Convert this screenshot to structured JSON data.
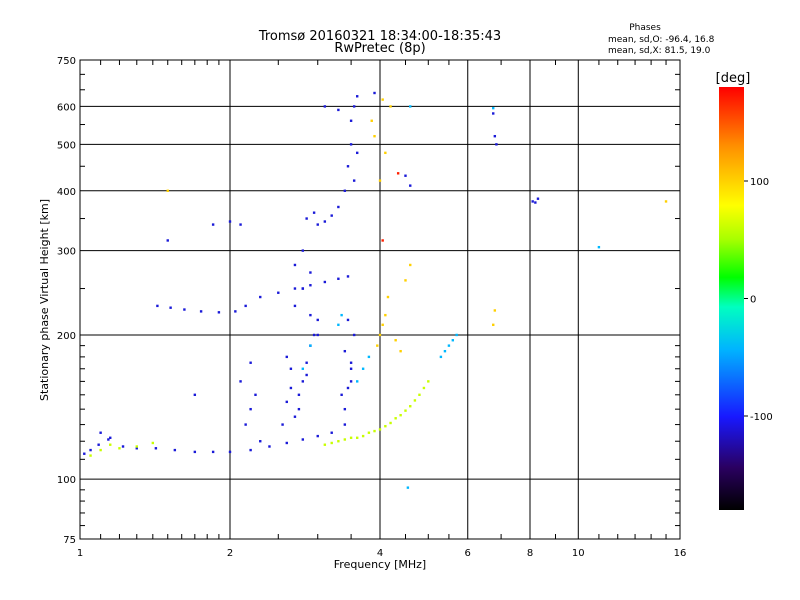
{
  "chart_data": {
    "type": "scatter",
    "title": "Tromsø 20160321 18:34:00-18:35:43",
    "subtitle": "RwPretec (8p)",
    "xlabel": "Frequency [MHz]",
    "ylabel": "Stationary phase Virtual Height [km]",
    "xscale": "log",
    "yscale": "log",
    "xlim": [
      1,
      16
    ],
    "ylim": [
      75,
      750
    ],
    "xticks": [
      "1",
      "2",
      "4",
      "6",
      "8",
      "10",
      "16"
    ],
    "yticks": [
      "75",
      "100",
      "200",
      "300",
      "400",
      "500",
      "600",
      "750"
    ],
    "grid": true,
    "stats": {
      "heading": "Phases",
      "line1": "mean, sd,O: -96.4, 16.8",
      "line2": "mean, sd,X:  81.5, 19.0"
    },
    "colorbar": {
      "label": "[deg]",
      "range": [
        -180,
        180
      ],
      "ticks": [
        "100",
        "0",
        "-100"
      ],
      "colors": [
        "#000000",
        "#2a0060",
        "#1818ff",
        "#00b4ff",
        "#00ffc0",
        "#00ff00",
        "#a8ff00",
        "#ffff00",
        "#ff9000",
        "#ff0000"
      ]
    },
    "series": [
      {
        "color": "#1a1ad8",
        "x": [
          1.02,
          1.05,
          1.09,
          1.14,
          1.22,
          1.3,
          1.42,
          1.55,
          1.7,
          1.85,
          2.0,
          2.2,
          2.4,
          2.6,
          2.8,
          3.0,
          3.2,
          1.43,
          1.52,
          1.62,
          1.75,
          1.9,
          2.05,
          2.15,
          2.3,
          2.5,
          2.7,
          2.9,
          3.1,
          3.3,
          3.45,
          2.7,
          2.75,
          2.8,
          2.85,
          2.9,
          2.6,
          2.65,
          2.95,
          3.0,
          2.55,
          2.7,
          2.8,
          2.9,
          2.6,
          2.75,
          2.85,
          2.7,
          2.8,
          2.9,
          2.65,
          3.4,
          3.45,
          3.5,
          3.4,
          3.55,
          3.45,
          3.5,
          3.35,
          3.5,
          3.4,
          2.15,
          2.2,
          2.25,
          2.1,
          2.2,
          2.3,
          3.0,
          3.1,
          3.2,
          3.3,
          3.4,
          3.45,
          3.5,
          3.5,
          3.55,
          3.6,
          3.55,
          3.6,
          2.85,
          2.95,
          3.1,
          3.3,
          1.85,
          2.0,
          2.1,
          1.7,
          2.8,
          3.0,
          6.75,
          6.8,
          6.85,
          8.1,
          8.3,
          8.2,
          4.5,
          4.6,
          3.9,
          1.5,
          1.1,
          1.15
        ],
        "y": [
          113,
          115,
          118,
          121,
          117,
          116,
          116,
          115,
          114,
          114,
          114,
          115,
          117,
          119,
          121,
          123,
          125,
          230,
          228,
          226,
          224,
          223,
          224,
          230,
          240,
          245,
          250,
          254,
          258,
          262,
          265,
          135,
          150,
          160,
          175,
          190,
          145,
          170,
          200,
          215,
          130,
          230,
          250,
          270,
          180,
          140,
          165,
          280,
          300,
          220,
          155,
          140,
          155,
          170,
          185,
          200,
          215,
          160,
          150,
          175,
          130,
          130,
          140,
          150,
          160,
          175,
          120,
          340,
          345,
          355,
          370,
          400,
          450,
          500,
          560,
          600,
          630,
          420,
          480,
          350,
          360,
          600,
          590,
          340,
          345,
          340,
          150,
          250,
          200,
          580,
          520,
          500,
          380,
          385,
          378,
          430,
          410,
          640,
          315,
          125,
          122
        ]
      },
      {
        "color": "#c8ff00",
        "x": [
          1.05,
          1.1,
          1.15,
          1.2,
          1.3,
          1.4,
          3.1,
          3.2,
          3.3,
          3.4,
          3.5,
          3.6,
          3.7,
          3.8,
          3.9,
          4.0,
          4.1,
          4.2,
          4.3,
          4.4,
          4.5,
          4.6,
          4.7,
          4.8,
          4.9,
          5.0
        ],
        "y": [
          112,
          115,
          118,
          116,
          117,
          119,
          118,
          119,
          120,
          121,
          122,
          122,
          123,
          125,
          126,
          127,
          129,
          131,
          134,
          136,
          139,
          142,
          146,
          150,
          155,
          160
        ]
      },
      {
        "color": "#ffd000",
        "x": [
          3.95,
          4.0,
          4.05,
          4.1,
          4.15,
          4.0,
          4.1,
          3.9,
          3.85,
          4.2,
          4.05,
          4.3,
          4.4,
          4.5,
          4.6,
          1.5,
          15.0,
          6.75,
          6.8
        ],
        "y": [
          190,
          200,
          210,
          220,
          240,
          420,
          480,
          520,
          560,
          600,
          620,
          195,
          185,
          260,
          280,
          400,
          380,
          210,
          225
        ]
      },
      {
        "color": "#00b8ff",
        "x": [
          3.6,
          3.7,
          3.8,
          3.3,
          3.35,
          2.8,
          2.9,
          5.3,
          5.4,
          5.5,
          5.6,
          5.7,
          11.0,
          6.75,
          4.55,
          4.6
        ],
        "y": [
          160,
          170,
          180,
          210,
          220,
          170,
          190,
          180,
          185,
          190,
          195,
          200,
          305,
          595,
          96,
          600
        ]
      },
      {
        "color": "#ff2000",
        "x": [
          4.35,
          4.05
        ],
        "y": [
          435,
          315
        ]
      }
    ]
  }
}
